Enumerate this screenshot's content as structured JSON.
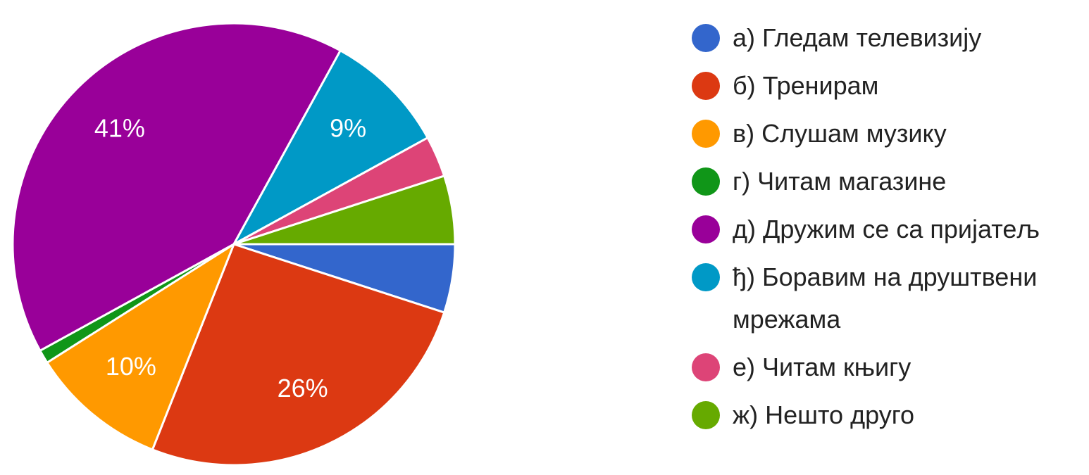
{
  "chart_data": {
    "type": "pie",
    "categories": [
      "а) Гледам телевизију",
      "б) Тренирам",
      "в) Слушам музику",
      "г) Читам магазине",
      "д) Дружим се са пријатељ",
      "ђ) Боравим на друштвени мрежама",
      "е) Читам књигу",
      "ж) Нешто друго"
    ],
    "values": [
      5,
      26,
      10,
      1,
      41,
      9,
      3,
      5
    ],
    "value_labels": [
      null,
      "26%",
      "10%",
      null,
      "41%",
      "9%",
      null,
      null
    ],
    "colors": [
      "#3366cc",
      "#dc3912",
      "#ff9900",
      "#109618",
      "#990099",
      "#0099c6",
      "#dd4477",
      "#66aa00"
    ],
    "legend": "right"
  }
}
